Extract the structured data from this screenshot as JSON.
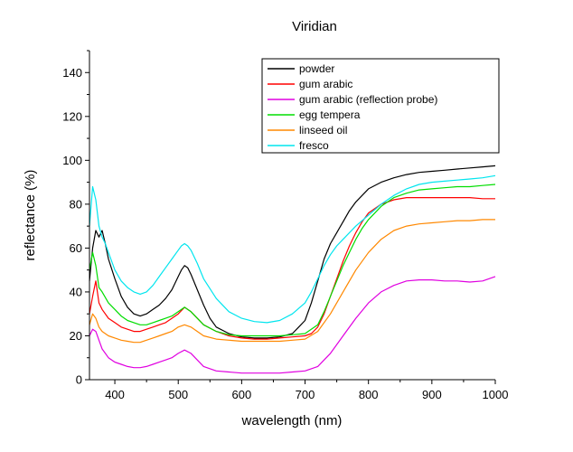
{
  "chart_data": {
    "type": "line",
    "title": "Viridian",
    "xlabel": "wavelength (nm)",
    "ylabel": "reflectance (%)",
    "xlim": [
      360,
      1000
    ],
    "ylim": [
      0,
      150
    ],
    "xticks": [
      400,
      500,
      600,
      700,
      800,
      900,
      1000
    ],
    "yticks": [
      0,
      20,
      40,
      60,
      80,
      100,
      120,
      140
    ],
    "grid": false,
    "legend_position": "top-right",
    "series": [
      {
        "name": "powder",
        "color": "#000000",
        "x": [
          360,
          365,
          370,
          375,
          380,
          385,
          390,
          400,
          410,
          420,
          430,
          440,
          450,
          460,
          470,
          480,
          490,
          500,
          505,
          510,
          515,
          520,
          530,
          540,
          550,
          560,
          580,
          600,
          620,
          640,
          660,
          680,
          690,
          700,
          710,
          720,
          730,
          740,
          750,
          760,
          770,
          780,
          790,
          800,
          820,
          840,
          860,
          880,
          900,
          920,
          940,
          960,
          980,
          1000
        ],
        "y": [
          45,
          60,
          68,
          65,
          68,
          62,
          55,
          46,
          38,
          33,
          30,
          29,
          30,
          32,
          34,
          37,
          41,
          47,
          50,
          52,
          51,
          48,
          41,
          34,
          28,
          24,
          21,
          19.5,
          19,
          19,
          19.5,
          21,
          24,
          27,
          35,
          45,
          55,
          62,
          67,
          72,
          77,
          81,
          84,
          87,
          90,
          92,
          93.5,
          94.5,
          95,
          95.5,
          96,
          96.5,
          97,
          97.5
        ]
      },
      {
        "name": "gum arabic",
        "color": "#ff0000",
        "x": [
          360,
          365,
          370,
          375,
          380,
          390,
          400,
          410,
          420,
          430,
          440,
          450,
          460,
          470,
          480,
          490,
          500,
          510,
          520,
          530,
          540,
          560,
          580,
          600,
          620,
          640,
          660,
          680,
          700,
          710,
          720,
          730,
          740,
          750,
          760,
          770,
          780,
          790,
          800,
          820,
          840,
          860,
          880,
          900,
          920,
          940,
          960,
          980,
          1000
        ],
        "y": [
          30,
          38,
          45,
          35,
          32,
          28,
          26,
          24,
          23,
          22,
          22,
          23,
          24,
          25,
          26,
          28,
          30,
          33,
          31,
          28,
          25,
          22,
          20,
          19,
          18.5,
          18.5,
          19,
          19.5,
          20,
          21,
          24,
          30,
          38,
          46,
          54,
          61,
          67,
          72,
          76,
          80,
          82,
          83,
          83,
          83,
          83,
          83,
          83,
          82.5,
          82.5
        ]
      },
      {
        "name": "gum arabic (reflection probe)",
        "color": "#e000e0",
        "x": [
          360,
          365,
          370,
          375,
          380,
          390,
          400,
          410,
          420,
          430,
          440,
          450,
          460,
          470,
          480,
          490,
          500,
          510,
          520,
          530,
          540,
          560,
          580,
          600,
          620,
          640,
          660,
          680,
          700,
          720,
          740,
          760,
          780,
          800,
          820,
          840,
          860,
          880,
          900,
          920,
          940,
          960,
          980,
          1000
        ],
        "y": [
          20,
          23,
          22,
          18,
          14,
          10,
          8,
          7,
          6,
          5.5,
          5.5,
          6,
          7,
          8,
          9,
          10,
          12,
          13.5,
          12,
          9,
          6,
          4,
          3.5,
          3,
          3,
          3,
          3,
          3.5,
          4,
          6,
          12,
          20,
          28,
          35,
          40,
          43,
          45,
          45.5,
          45.5,
          45,
          45,
          44.5,
          45,
          47
        ]
      },
      {
        "name": "egg tempera",
        "color": "#00dd00",
        "x": [
          360,
          365,
          370,
          375,
          380,
          390,
          400,
          410,
          420,
          430,
          440,
          450,
          460,
          470,
          480,
          490,
          500,
          510,
          520,
          530,
          540,
          560,
          580,
          600,
          620,
          640,
          660,
          680,
          700,
          720,
          730,
          740,
          750,
          760,
          770,
          780,
          790,
          800,
          820,
          840,
          860,
          880,
          900,
          920,
          940,
          960,
          980,
          1000
        ],
        "y": [
          50,
          58,
          52,
          42,
          40,
          35,
          32,
          29,
          27,
          26,
          25,
          25,
          26,
          27,
          28,
          29,
          31,
          33,
          31,
          28,
          25,
          22,
          20.5,
          20,
          20,
          20,
          20,
          20.5,
          21,
          25,
          31,
          38,
          45,
          52,
          58,
          64,
          69,
          73,
          79,
          83,
          85,
          86.5,
          87,
          87.5,
          88,
          88,
          88.5,
          89
        ]
      },
      {
        "name": "linseed oil",
        "color": "#ff8800",
        "x": [
          360,
          365,
          370,
          375,
          380,
          390,
          400,
          410,
          420,
          430,
          440,
          450,
          460,
          470,
          480,
          490,
          500,
          510,
          520,
          530,
          540,
          560,
          580,
          600,
          620,
          640,
          660,
          680,
          700,
          720,
          740,
          760,
          780,
          800,
          820,
          840,
          860,
          880,
          900,
          920,
          940,
          960,
          980,
          1000
        ],
        "y": [
          25,
          30,
          28,
          24,
          22,
          20,
          19,
          18,
          17.5,
          17,
          17,
          18,
          19,
          20,
          21,
          22,
          24,
          25,
          24,
          22,
          20,
          18.5,
          18,
          17.5,
          17.5,
          17.5,
          17.5,
          18,
          18.5,
          22,
          30,
          40,
          50,
          58,
          64,
          68,
          70,
          71,
          71.5,
          72,
          72.5,
          72.5,
          73,
          73
        ]
      },
      {
        "name": "fresco",
        "color": "#00e5ee",
        "x": [
          360,
          365,
          370,
          375,
          380,
          385,
          390,
          400,
          410,
          420,
          430,
          440,
          450,
          460,
          470,
          480,
          490,
          500,
          505,
          510,
          515,
          520,
          530,
          540,
          560,
          580,
          600,
          620,
          640,
          660,
          680,
          700,
          710,
          720,
          730,
          740,
          750,
          760,
          780,
          800,
          820,
          840,
          860,
          880,
          900,
          920,
          940,
          960,
          980,
          1000
        ],
        "y": [
          70,
          88,
          82,
          70,
          65,
          62,
          58,
          50,
          45,
          42,
          40,
          39,
          40,
          43,
          47,
          51,
          55,
          59,
          61,
          62,
          61,
          59,
          53,
          46,
          37,
          31,
          28,
          26.5,
          26,
          27,
          30,
          35,
          40,
          46,
          52,
          57,
          61,
          64,
          70,
          75,
          80,
          84,
          87,
          89,
          90,
          90.5,
          91,
          91.5,
          92,
          93
        ]
      }
    ]
  }
}
